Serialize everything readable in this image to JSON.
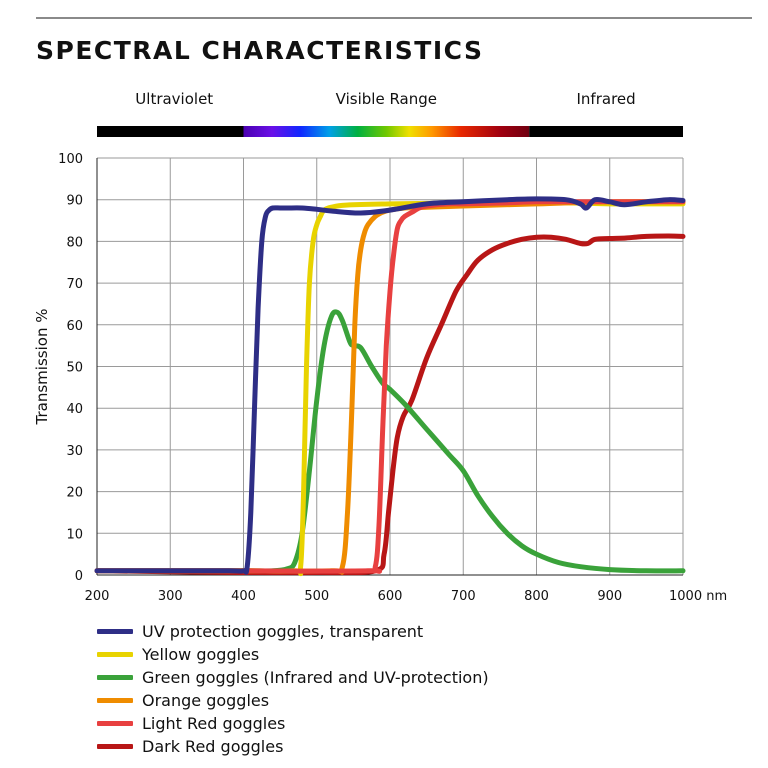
{
  "page": {
    "title": "SPECTRAL CHARACTERISTICS"
  },
  "chart_data": {
    "type": "line",
    "title": "SPECTRAL CHARACTERISTICS",
    "xlabel": "",
    "ylabel": "Transmission %",
    "x_unit": "nm",
    "xlim": [
      200,
      1000
    ],
    "ylim": [
      0,
      100
    ],
    "x_ticks": [
      200,
      300,
      400,
      500,
      600,
      700,
      800,
      900,
      1000
    ],
    "y_ticks": [
      0,
      10,
      20,
      30,
      40,
      50,
      60,
      70,
      80,
      90,
      100
    ],
    "grid": true,
    "legend_placement": "bottom",
    "spectrum_bands": [
      {
        "label": "Ultraviolet",
        "from": 200,
        "to": 400
      },
      {
        "label": "Visible Range",
        "from": 400,
        "to": 790
      },
      {
        "label": "Infrared",
        "from": 790,
        "to": 1000
      }
    ],
    "series": [
      {
        "name": "UV protection goggles, transparent",
        "color": "#2e2e86",
        "x": [
          200,
          300,
          380,
          400,
          405,
          410,
          415,
          420,
          425,
          430,
          435,
          440,
          450,
          460,
          480,
          500,
          520,
          560,
          600,
          650,
          700,
          760,
          800,
          840,
          860,
          868,
          880,
          900,
          920,
          950,
          980,
          1000
        ],
        "y": [
          1,
          1,
          1,
          1,
          2,
          15,
          40,
          64,
          80,
          86,
          87.5,
          88,
          88,
          88,
          88,
          87.7,
          87.3,
          86.8,
          87.5,
          89,
          89.5,
          90,
          90.2,
          90,
          89,
          88,
          90,
          89.5,
          88.8,
          89.5,
          90,
          89.8
        ]
      },
      {
        "name": "Yellow goggles",
        "color": "#e8d300",
        "x": [
          200,
          300,
          400,
          470,
          478,
          482,
          486,
          490,
          495,
          500,
          505,
          510,
          520,
          540,
          600,
          700,
          800,
          850,
          900,
          950,
          1000
        ],
        "y": [
          1,
          1,
          1,
          1,
          2,
          20,
          50,
          70,
          80,
          84,
          86,
          87.5,
          88.2,
          88.7,
          89,
          89.2,
          89.3,
          89.2,
          89,
          89,
          89
        ]
      },
      {
        "name": "Green goggles (Infrared and UV-protection)",
        "color": "#3aa23a",
        "x": [
          200,
          300,
          400,
          440,
          460,
          470,
          480,
          490,
          500,
          510,
          520,
          528,
          535,
          545,
          550,
          560,
          575,
          590,
          600,
          620,
          650,
          680,
          700,
          720,
          740,
          760,
          780,
          800,
          830,
          860,
          900,
          950,
          1000
        ],
        "y": [
          1,
          1,
          1,
          1,
          1.5,
          3,
          10,
          25,
          42,
          55,
          62,
          63,
          61,
          56,
          55,
          54.5,
          50,
          46,
          44.5,
          41,
          35,
          29,
          25,
          19,
          14,
          10,
          7,
          5,
          3,
          2,
          1.3,
          1,
          1
        ]
      },
      {
        "name": "Orange goggles",
        "color": "#ef8c00",
        "x": [
          200,
          300,
          400,
          520,
          535,
          542,
          548,
          552,
          556,
          560,
          565,
          570,
          580,
          590,
          600,
          620,
          650,
          700,
          800,
          900,
          1000
        ],
        "y": [
          1,
          1,
          1,
          1,
          2,
          15,
          40,
          60,
          72,
          78,
          82,
          84,
          86,
          87,
          87.5,
          88,
          88.2,
          88.5,
          89,
          89.5,
          89.5
        ]
      },
      {
        "name": "Light Red goggles",
        "color": "#e84040",
        "x": [
          200,
          300,
          400,
          570,
          580,
          585,
          590,
          595,
          600,
          605,
          610,
          615,
          620,
          630,
          640,
          650,
          680,
          700,
          750,
          800,
          850,
          900,
          950,
          1000
        ],
        "y": [
          1,
          1,
          1,
          1,
          2,
          12,
          35,
          55,
          68,
          77,
          83,
          85,
          86,
          87,
          88,
          88.5,
          89,
          89,
          89.2,
          89.5,
          89.5,
          89.5,
          89.5,
          89.5
        ]
      },
      {
        "name": "Dark Red goggles",
        "color": "#b81616",
        "x": [
          200,
          300,
          400,
          500,
          580,
          592,
          598,
          604,
          610,
          618,
          630,
          650,
          670,
          690,
          705,
          720,
          740,
          760,
          780,
          800,
          820,
          840,
          860,
          870,
          880,
          900,
          920,
          950,
          980,
          1000
        ],
        "y": [
          1,
          0.8,
          0.6,
          0.6,
          1,
          5,
          15,
          25,
          33,
          38,
          42,
          52,
          60,
          68,
          72,
          75.5,
          78,
          79.5,
          80.5,
          81,
          81,
          80.5,
          79.5,
          79.5,
          80.5,
          80.7,
          80.8,
          81.2,
          81.3,
          81.2
        ]
      }
    ]
  },
  "legend": {
    "items": [
      {
        "label": "UV protection goggles, transparent",
        "color": "#2e2e86"
      },
      {
        "label": "Yellow goggles",
        "color": "#e8d300"
      },
      {
        "label": "Green goggles (Infrared and UV-protection)",
        "color": "#3aa23a"
      },
      {
        "label": "Orange goggles",
        "color": "#ef8c00"
      },
      {
        "label": "Light Red goggles",
        "color": "#e84040"
      },
      {
        "label": "Dark Red goggles",
        "color": "#b81616"
      }
    ]
  }
}
